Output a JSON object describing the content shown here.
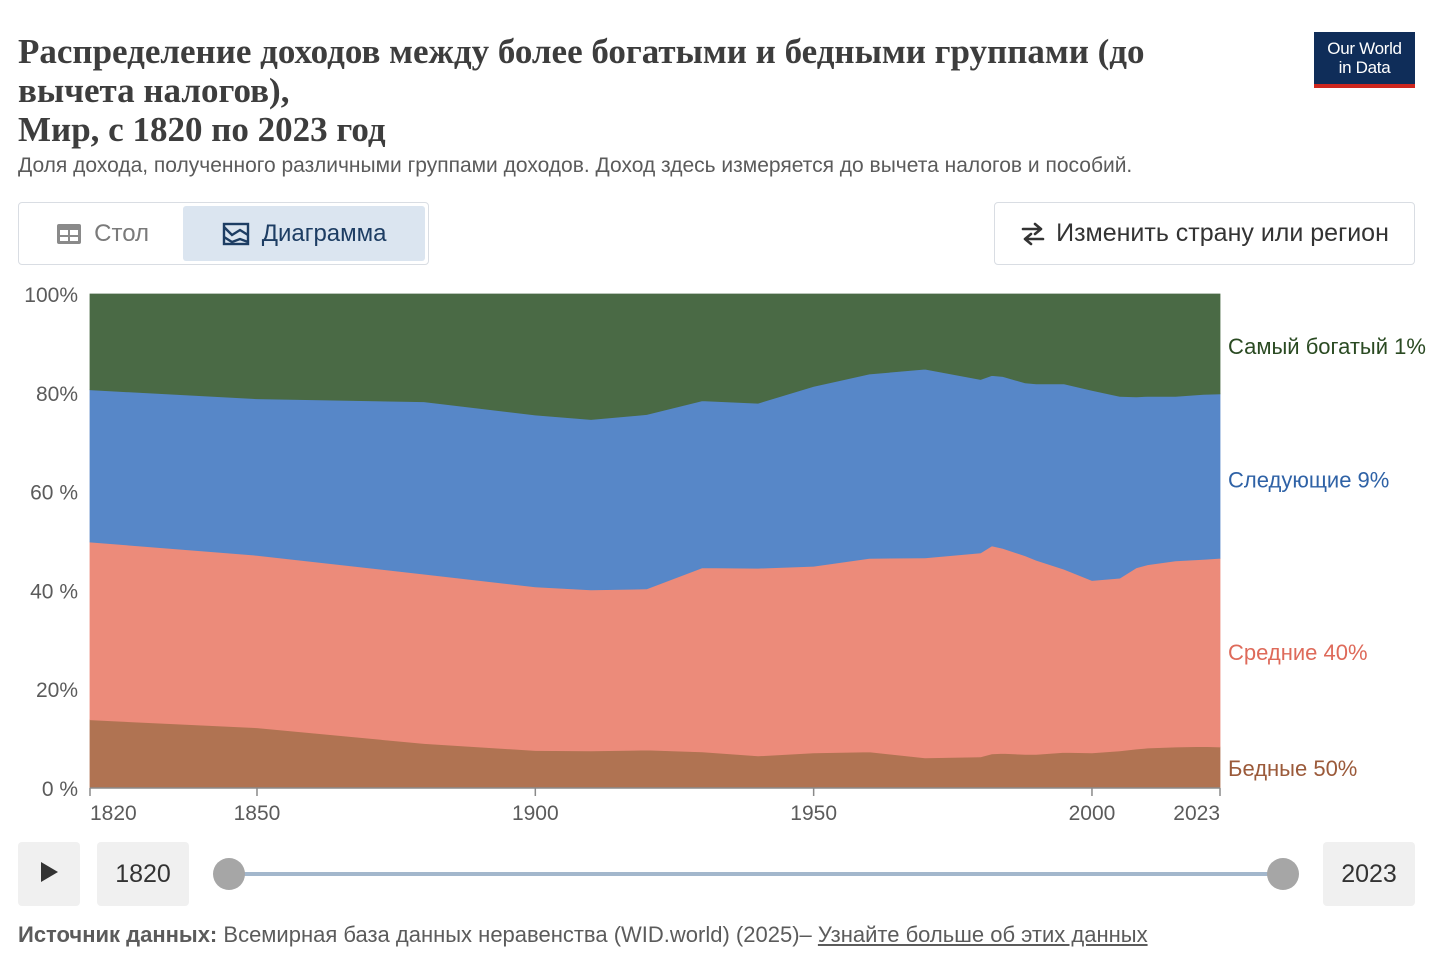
{
  "header": {
    "title_line1": "Распределение доходов между более богатыми и бедными группами (до",
    "title_line2": "вычета налогов),",
    "title_line3": "Мир, с 1820 по 2023 год",
    "subtitle": "Доля дохода, полученного различными группами доходов. Доход здесь измеряется до вычета налогов и пособий.",
    "logo_line1": "Our World",
    "logo_line2": "in Data"
  },
  "tabs": {
    "table": "Стол",
    "chart": "Диаграмма"
  },
  "controls": {
    "change_region": "Изменить страну или регион",
    "start_year": "1820",
    "end_year": "2023"
  },
  "source": {
    "label": "Источник данных:",
    "text": "Всемирная база данных неравенства (WID.world) (2025)–",
    "link": "Узнайте больше об этих данных"
  },
  "colors": {
    "top1": "#4a6a45",
    "next9": "#5787c8",
    "middle40": "#ec8b7a",
    "bottom50": "#b07352",
    "top1_label": "#2a4a22",
    "next9_label": "#2f62a6",
    "middle40_label": "#de6a5a",
    "bottom50_label": "#9b5a3a"
  },
  "chart_data": {
    "type": "area",
    "stacked": true,
    "title": "Распределение доходов между более богатыми и бедными группами (до вычета налогов), Мир, с 1820 по 2023 год",
    "xlabel": "",
    "ylabel": "",
    "xlim": [
      1820,
      2023
    ],
    "ylim": [
      0,
      100
    ],
    "x_ticks": [
      "1820",
      "1850",
      "1900",
      "1950",
      "2000",
      "2023"
    ],
    "y_ticks": [
      "0 %",
      "20%",
      "40 %",
      "60 %",
      "80%",
      "100%"
    ],
    "x": [
      1820,
      1850,
      1880,
      1900,
      1910,
      1920,
      1930,
      1940,
      1950,
      1960,
      1970,
      1980,
      1982,
      1984,
      1988,
      1990,
      1995,
      2000,
      2005,
      2008,
      2010,
      2015,
      2020,
      2023
    ],
    "series": [
      {
        "name": "Бедные 50%",
        "label": "Бедные 50%",
        "values": [
          13.8,
          12.2,
          9.0,
          7.6,
          7.5,
          7.7,
          7.3,
          6.5,
          7.1,
          7.3,
          6.1,
          6.3,
          6.9,
          7.0,
          6.8,
          6.8,
          7.2,
          7.1,
          7.5,
          7.9,
          8.1,
          8.3,
          8.4,
          8.3
        ]
      },
      {
        "name": "Средние 40%",
        "label": "Средние 40%",
        "values": [
          36.0,
          34.9,
          34.3,
          33.1,
          32.6,
          32.6,
          37.3,
          38.0,
          37.8,
          39.2,
          40.5,
          41.3,
          42.1,
          41.5,
          40.2,
          39.3,
          37.1,
          34.9,
          35.0,
          36.7,
          37.1,
          37.7,
          37.9,
          38.2
        ]
      },
      {
        "name": "Следующие 9%",
        "label": "Следующие 9%",
        "values": [
          30.8,
          31.7,
          34.9,
          34.8,
          34.5,
          35.3,
          33.8,
          33.4,
          36.4,
          37.3,
          38.2,
          35.1,
          34.5,
          34.8,
          35.0,
          35.7,
          37.5,
          38.5,
          36.8,
          34.6,
          34.1,
          33.3,
          33.4,
          33.3
        ]
      }
    ],
    "series_top": {
      "name": "Самый богатый 1%",
      "label": "Самый богатый 1%",
      "values": [
        19.4,
        21.2,
        21.8,
        24.5,
        25.4,
        24.4,
        21.6,
        22.1,
        18.7,
        16.2,
        15.2,
        17.3,
        16.5,
        16.7,
        18.0,
        18.2,
        18.2,
        19.5,
        20.7,
        20.8,
        20.7,
        20.7,
        20.3,
        20.2
      ]
    },
    "legend_position": "right"
  }
}
